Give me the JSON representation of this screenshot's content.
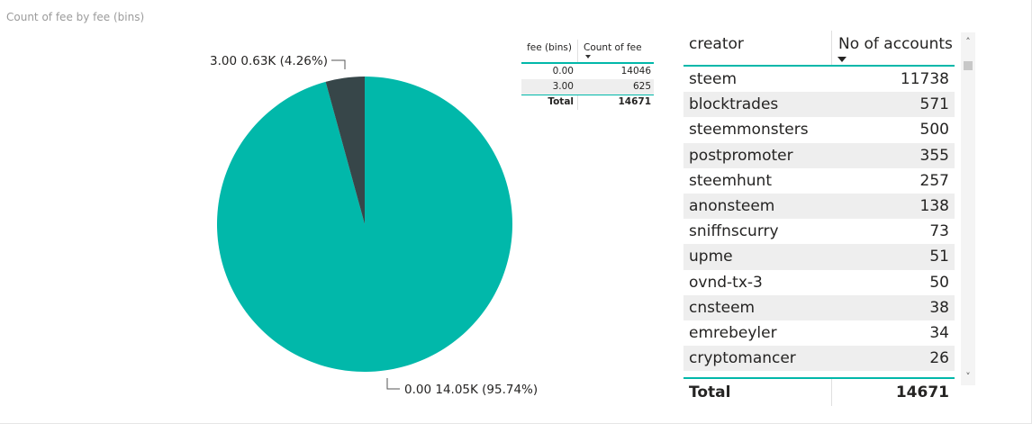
{
  "chart_data": [
    {
      "type": "pie",
      "title": "Count of fee by fee (bins)",
      "slices": [
        {
          "label": "0.00",
          "value": 14046,
          "display": "0.00 14.05K (95.74%)",
          "color": "#01b8aa"
        },
        {
          "label": "3.00",
          "value": 625,
          "display": "3.00 0.63K (4.26%)",
          "color": "#374649"
        }
      ]
    },
    {
      "type": "table",
      "columns": [
        "fee (bins)",
        "Count of fee"
      ],
      "rows": [
        [
          "0.00",
          "14046"
        ],
        [
          "3.00",
          "625"
        ]
      ],
      "total": {
        "label": "Total",
        "value": "14671"
      }
    },
    {
      "type": "table",
      "columns": [
        "creator",
        "No of accounts"
      ],
      "rows": [
        [
          "steem",
          "11738"
        ],
        [
          "blocktrades",
          "571"
        ],
        [
          "steemmonsters",
          "500"
        ],
        [
          "postpromoter",
          "355"
        ],
        [
          "steemhunt",
          "257"
        ],
        [
          "anonsteem",
          "138"
        ],
        [
          "sniffnscurry",
          "73"
        ],
        [
          "upme",
          "51"
        ],
        [
          "ovnd-tx-3",
          "50"
        ],
        [
          "cnsteem",
          "38"
        ],
        [
          "emrebeyler",
          "34"
        ],
        [
          "cryptomancer",
          "26"
        ]
      ],
      "total": {
        "label": "Total",
        "value": "14671"
      }
    }
  ],
  "scrollbar": {
    "up_icon": "chevron-up-icon",
    "down_icon": "chevron-down-icon"
  }
}
